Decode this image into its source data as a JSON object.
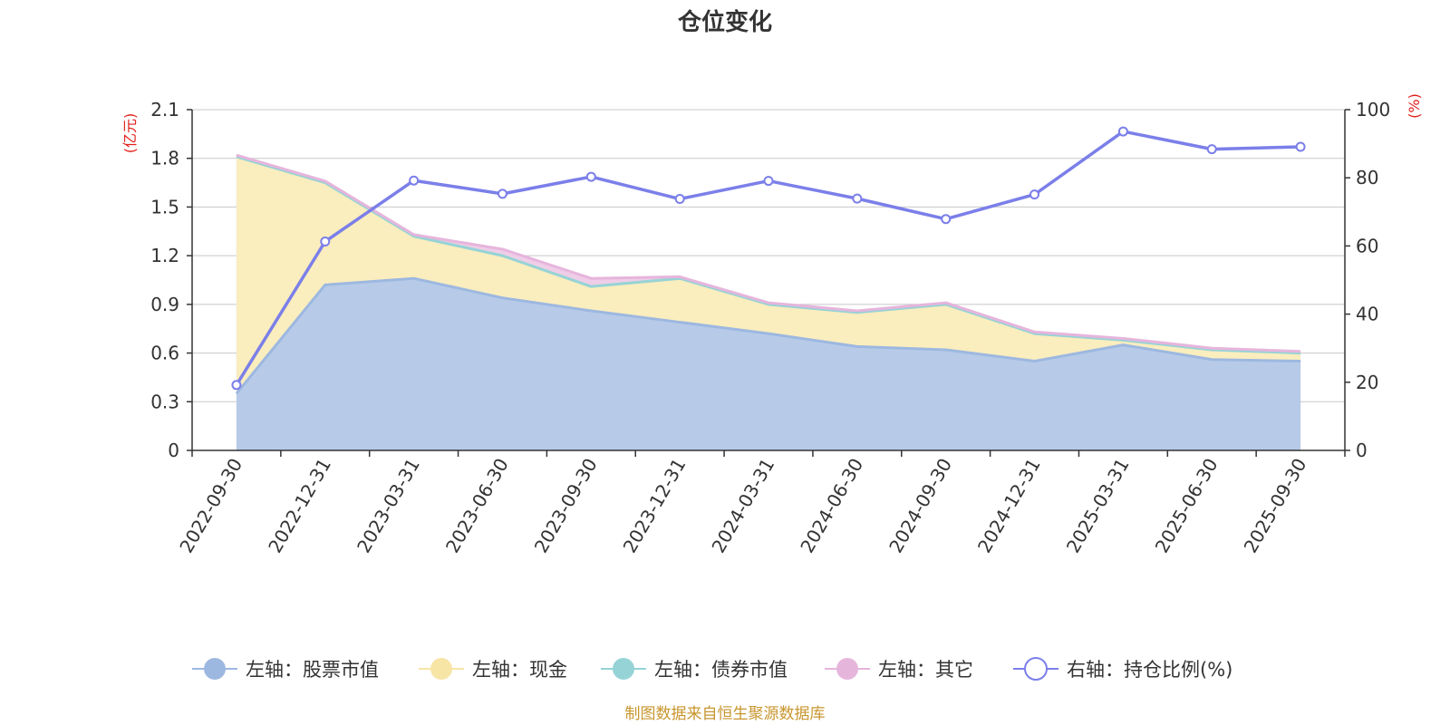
{
  "chart_data": {
    "type": "area",
    "title": "仓位变化",
    "left_unit": "(亿元)",
    "right_unit": "(%)",
    "categories": [
      "2022-09-30",
      "2022-12-31",
      "2023-03-31",
      "2023-06-30",
      "2023-09-30",
      "2023-12-31",
      "2024-03-31",
      "2024-06-30",
      "2024-09-30",
      "2024-12-31",
      "2025-03-31",
      "2025-06-30",
      "2025-09-30"
    ],
    "left_axis": {
      "min": 0,
      "max": 2.1,
      "ticks": [
        "0",
        "0.3",
        "0.6",
        "0.9",
        "1.2",
        "1.5",
        "1.8",
        "2.1"
      ]
    },
    "right_axis": {
      "min": 0,
      "max": 100,
      "ticks": [
        "0",
        "20",
        "40",
        "60",
        "80",
        "100"
      ]
    },
    "series": [
      {
        "name": "左轴：股票市值",
        "axis": "left",
        "stacked": true,
        "color": "#9db8e0",
        "fill": "#b7cbe9",
        "values": [
          0.35,
          1.02,
          1.06,
          0.94,
          0.86,
          0.79,
          0.72,
          0.64,
          0.62,
          0.55,
          0.65,
          0.56,
          0.55
        ]
      },
      {
        "name": "左轴：现金",
        "axis": "left",
        "stacked": true,
        "color": "#f7e5a6",
        "fill": "#faedbe",
        "values": [
          1.46,
          0.63,
          0.26,
          0.26,
          0.15,
          0.27,
          0.18,
          0.21,
          0.28,
          0.17,
          0.03,
          0.06,
          0.05
        ]
      },
      {
        "name": "左轴：债券市值",
        "axis": "left",
        "stacked": true,
        "color": "#96d3d7",
        "fill": "#b4e1e4",
        "values": [
          0,
          0,
          0,
          0,
          0,
          0,
          0,
          0,
          0,
          0,
          0,
          0,
          0
        ]
      },
      {
        "name": "左轴：其它",
        "axis": "left",
        "stacked": true,
        "color": "#e6b5dc",
        "fill": "#efcde8",
        "values": [
          0.01,
          0.01,
          0.01,
          0.04,
          0.05,
          0.01,
          0.01,
          0.01,
          0.01,
          0.01,
          0.01,
          0.01,
          0.01
        ]
      },
      {
        "name": "右轴：持仓比例(%)",
        "axis": "right",
        "stacked": false,
        "color": "#7b7fe9",
        "values": [
          19.2,
          61.3,
          79.2,
          75.3,
          80.3,
          73.8,
          79.1,
          73.9,
          67.9,
          75.1,
          93.6,
          88.4,
          89.1
        ]
      }
    ],
    "legend_position": "bottom",
    "grid": true
  },
  "source_text": "制图数据来自恒生聚源数据库"
}
